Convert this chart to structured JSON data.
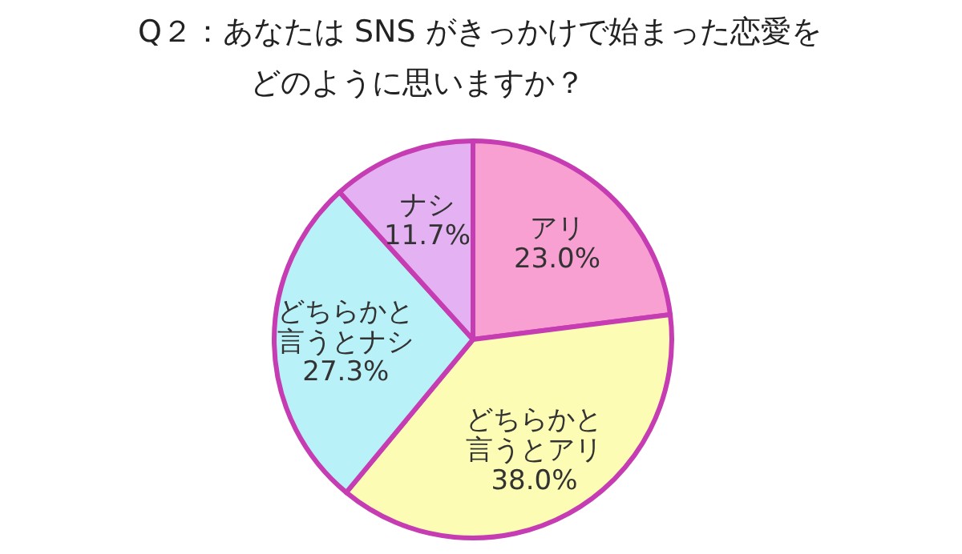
{
  "chart_data": {
    "type": "pie",
    "title": "Q２：あなたは SNS がきっかけで始まった恋愛を",
    "subtitle": "どのように思いますか？",
    "categories": [
      "アリ",
      "どちらかと言うとアリ",
      "どちらかと言うとナシ",
      "ナシ"
    ],
    "values": [
      23.0,
      38.0,
      27.3,
      11.7
    ],
    "colors": [
      "#f9a0d2",
      "#fcfcb4",
      "#b8f2f8",
      "#e4b2f2"
    ],
    "value_labels": [
      "23.0%",
      "38.0%",
      "27.3%",
      "11.7%"
    ]
  }
}
